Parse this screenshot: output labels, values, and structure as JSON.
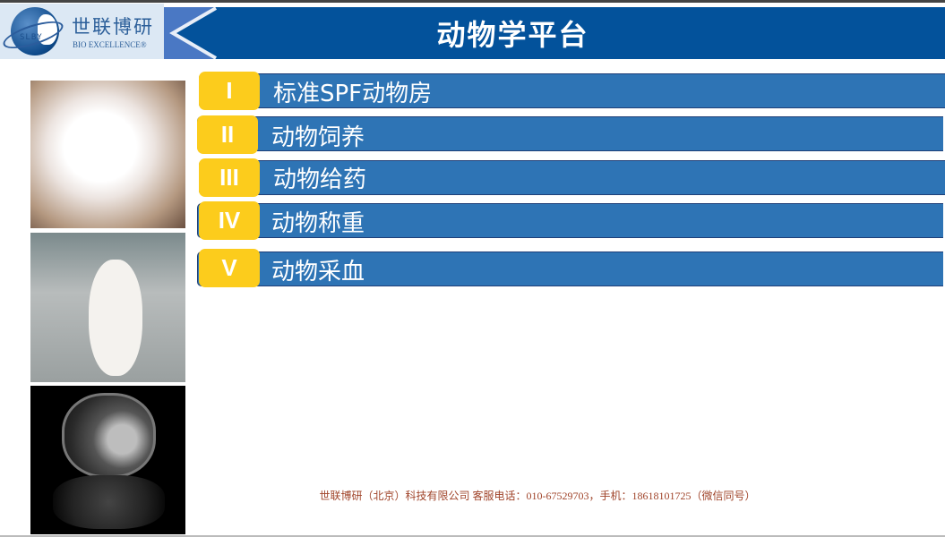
{
  "logo": {
    "cn": "世联博研",
    "en": "BIO EXCELLENCE®",
    "globe_text": "SLBY"
  },
  "header": {
    "title": "动物学平台"
  },
  "menu": [
    {
      "num": "I",
      "label": "标准SPF动物房"
    },
    {
      "num": "II",
      "label": "动物饲养"
    },
    {
      "num": "III",
      "label": "动物给药"
    },
    {
      "num": "IV",
      "label": "动物称重"
    },
    {
      "num": "V",
      "label": "动物采血"
    }
  ],
  "footer": {
    "text": "世联博研（北京）科技有限公司   客服电话：010-67529703，手机：18618101725（微信同号）"
  },
  "colors": {
    "header": "#03529b",
    "bar": "#2e74b5",
    "badge": "#fccc1c",
    "footer_text": "#a0442a"
  }
}
